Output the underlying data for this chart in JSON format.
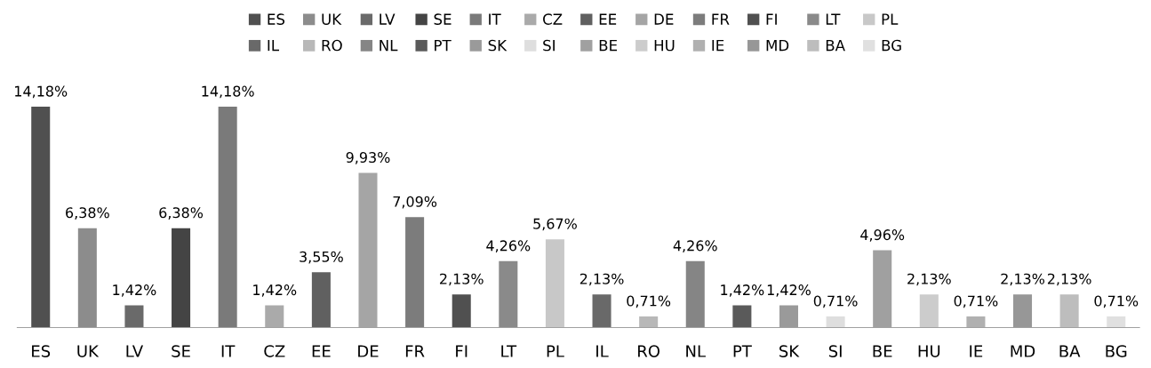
{
  "chart_data": {
    "type": "bar",
    "categories": [
      "ES",
      "UK",
      "LV",
      "SE",
      "IT",
      "CZ",
      "EE",
      "DE",
      "FR",
      "FI",
      "LT",
      "PL",
      "IL",
      "RO",
      "NL",
      "PT",
      "SK",
      "SI",
      "BE",
      "HU",
      "IE",
      "MD",
      "BA",
      "BG"
    ],
    "legend": "top",
    "series": [
      {
        "name": "ES",
        "color": "#505050",
        "values": [
          14.18,
          null,
          null,
          null,
          null,
          null,
          null,
          null,
          null,
          null,
          null,
          null,
          null,
          null,
          null,
          null,
          null,
          null,
          null,
          null,
          null,
          null,
          null,
          null
        ],
        "value_labels": [
          "14,18%",
          null,
          null,
          null,
          null,
          null,
          null,
          null,
          null,
          null,
          null,
          null,
          null,
          null,
          null,
          null,
          null,
          null,
          null,
          null,
          null,
          null,
          null,
          null
        ]
      },
      {
        "name": "UK",
        "color": "#8c8c8c",
        "values": [
          null,
          6.38,
          null,
          null,
          null,
          null,
          null,
          null,
          null,
          null,
          null,
          null,
          null,
          null,
          null,
          null,
          null,
          null,
          null,
          null,
          null,
          null,
          null,
          null
        ],
        "value_labels": [
          null,
          "6,38%",
          null,
          null,
          null,
          null,
          null,
          null,
          null,
          null,
          null,
          null,
          null,
          null,
          null,
          null,
          null,
          null,
          null,
          null,
          null,
          null,
          null,
          null
        ]
      },
      {
        "name": "LV",
        "color": "#6a6a6a",
        "values": [
          null,
          null,
          1.42,
          null,
          null,
          null,
          null,
          null,
          null,
          null,
          null,
          null,
          null,
          null,
          null,
          null,
          null,
          null,
          null,
          null,
          null,
          null,
          null,
          null
        ],
        "value_labels": [
          null,
          null,
          "1,42%",
          null,
          null,
          null,
          null,
          null,
          null,
          null,
          null,
          null,
          null,
          null,
          null,
          null,
          null,
          null,
          null,
          null,
          null,
          null,
          null,
          null
        ]
      },
      {
        "name": "SE",
        "color": "#444444",
        "values": [
          null,
          null,
          null,
          6.38,
          null,
          null,
          null,
          null,
          null,
          null,
          null,
          null,
          null,
          null,
          null,
          null,
          null,
          null,
          null,
          null,
          null,
          null,
          null,
          null
        ],
        "value_labels": [
          null,
          null,
          null,
          "6,38%",
          null,
          null,
          null,
          null,
          null,
          null,
          null,
          null,
          null,
          null,
          null,
          null,
          null,
          null,
          null,
          null,
          null,
          null,
          null,
          null
        ]
      },
      {
        "name": "IT",
        "color": "#7a7a7a",
        "values": [
          null,
          null,
          null,
          null,
          14.18,
          null,
          null,
          null,
          null,
          null,
          null,
          null,
          null,
          null,
          null,
          null,
          null,
          null,
          null,
          null,
          null,
          null,
          null,
          null
        ],
        "value_labels": [
          null,
          null,
          null,
          null,
          "14,18%",
          null,
          null,
          null,
          null,
          null,
          null,
          null,
          null,
          null,
          null,
          null,
          null,
          null,
          null,
          null,
          null,
          null,
          null,
          null
        ]
      },
      {
        "name": "CZ",
        "color": "#aaaaaa",
        "values": [
          null,
          null,
          null,
          null,
          null,
          1.42,
          null,
          null,
          null,
          null,
          null,
          null,
          null,
          null,
          null,
          null,
          null,
          null,
          null,
          null,
          null,
          null,
          null,
          null
        ],
        "value_labels": [
          null,
          null,
          null,
          null,
          null,
          "1,42%",
          null,
          null,
          null,
          null,
          null,
          null,
          null,
          null,
          null,
          null,
          null,
          null,
          null,
          null,
          null,
          null,
          null,
          null
        ]
      },
      {
        "name": "EE",
        "color": "#606060",
        "values": [
          null,
          null,
          null,
          null,
          null,
          null,
          3.55,
          null,
          null,
          null,
          null,
          null,
          null,
          null,
          null,
          null,
          null,
          null,
          null,
          null,
          null,
          null,
          null,
          null
        ],
        "value_labels": [
          null,
          null,
          null,
          null,
          null,
          null,
          "3,55%",
          null,
          null,
          null,
          null,
          null,
          null,
          null,
          null,
          null,
          null,
          null,
          null,
          null,
          null,
          null,
          null,
          null
        ]
      },
      {
        "name": "DE",
        "color": "#a5a5a5",
        "values": [
          null,
          null,
          null,
          null,
          null,
          null,
          null,
          9.93,
          null,
          null,
          null,
          null,
          null,
          null,
          null,
          null,
          null,
          null,
          null,
          null,
          null,
          null,
          null,
          null
        ],
        "value_labels": [
          null,
          null,
          null,
          null,
          null,
          null,
          null,
          "9,93%",
          null,
          null,
          null,
          null,
          null,
          null,
          null,
          null,
          null,
          null,
          null,
          null,
          null,
          null,
          null,
          null
        ]
      },
      {
        "name": "FR",
        "color": "#7c7c7c",
        "values": [
          null,
          null,
          null,
          null,
          null,
          null,
          null,
          null,
          7.09,
          null,
          null,
          null,
          null,
          null,
          null,
          null,
          null,
          null,
          null,
          null,
          null,
          null,
          null,
          null
        ],
        "value_labels": [
          null,
          null,
          null,
          null,
          null,
          null,
          null,
          null,
          "7,09%",
          null,
          null,
          null,
          null,
          null,
          null,
          null,
          null,
          null,
          null,
          null,
          null,
          null,
          null,
          null
        ]
      },
      {
        "name": "FI",
        "color": "#505050",
        "values": [
          null,
          null,
          null,
          null,
          null,
          null,
          null,
          null,
          null,
          2.13,
          null,
          null,
          null,
          null,
          null,
          null,
          null,
          null,
          null,
          null,
          null,
          null,
          null,
          null
        ],
        "value_labels": [
          null,
          null,
          null,
          null,
          null,
          null,
          null,
          null,
          null,
          "2,13%",
          null,
          null,
          null,
          null,
          null,
          null,
          null,
          null,
          null,
          null,
          null,
          null,
          null,
          null
        ]
      },
      {
        "name": "LT",
        "color": "#8a8a8a",
        "values": [
          null,
          null,
          null,
          null,
          null,
          null,
          null,
          null,
          null,
          null,
          4.26,
          null,
          null,
          null,
          null,
          null,
          null,
          null,
          null,
          null,
          null,
          null,
          null,
          null
        ],
        "value_labels": [
          null,
          null,
          null,
          null,
          null,
          null,
          null,
          null,
          null,
          null,
          "4,26%",
          null,
          null,
          null,
          null,
          null,
          null,
          null,
          null,
          null,
          null,
          null,
          null,
          null
        ]
      },
      {
        "name": "PL",
        "color": "#c8c8c8",
        "values": [
          null,
          null,
          null,
          null,
          null,
          null,
          null,
          null,
          null,
          null,
          null,
          5.67,
          null,
          null,
          null,
          null,
          null,
          null,
          null,
          null,
          null,
          null,
          null,
          null
        ],
        "value_labels": [
          null,
          null,
          null,
          null,
          null,
          null,
          null,
          null,
          null,
          null,
          null,
          "5,67%",
          null,
          null,
          null,
          null,
          null,
          null,
          null,
          null,
          null,
          null,
          null,
          null
        ]
      },
      {
        "name": "IL",
        "color": "#696969",
        "values": [
          null,
          null,
          null,
          null,
          null,
          null,
          null,
          null,
          null,
          null,
          null,
          null,
          2.13,
          null,
          null,
          null,
          null,
          null,
          null,
          null,
          null,
          null,
          null,
          null
        ],
        "value_labels": [
          null,
          null,
          null,
          null,
          null,
          null,
          null,
          null,
          null,
          null,
          null,
          null,
          "2,13%",
          null,
          null,
          null,
          null,
          null,
          null,
          null,
          null,
          null,
          null,
          null
        ]
      },
      {
        "name": "RO",
        "color": "#b8b8b8",
        "values": [
          null,
          null,
          null,
          null,
          null,
          null,
          null,
          null,
          null,
          null,
          null,
          null,
          null,
          0.71,
          null,
          null,
          null,
          null,
          null,
          null,
          null,
          null,
          null,
          null
        ],
        "value_labels": [
          null,
          null,
          null,
          null,
          null,
          null,
          null,
          null,
          null,
          null,
          null,
          null,
          null,
          "0,71%",
          null,
          null,
          null,
          null,
          null,
          null,
          null,
          null,
          null,
          null
        ]
      },
      {
        "name": "NL",
        "color": "#858585",
        "values": [
          null,
          null,
          null,
          null,
          null,
          null,
          null,
          null,
          null,
          null,
          null,
          null,
          null,
          null,
          4.26,
          null,
          null,
          null,
          null,
          null,
          null,
          null,
          null,
          null
        ],
        "value_labels": [
          null,
          null,
          null,
          null,
          null,
          null,
          null,
          null,
          null,
          null,
          null,
          null,
          null,
          null,
          "4,26%",
          null,
          null,
          null,
          null,
          null,
          null,
          null,
          null,
          null
        ]
      },
      {
        "name": "PT",
        "color": "#5a5a5a",
        "values": [
          null,
          null,
          null,
          null,
          null,
          null,
          null,
          null,
          null,
          null,
          null,
          null,
          null,
          null,
          null,
          1.42,
          null,
          null,
          null,
          null,
          null,
          null,
          null,
          null
        ],
        "value_labels": [
          null,
          null,
          null,
          null,
          null,
          null,
          null,
          null,
          null,
          null,
          null,
          null,
          null,
          null,
          null,
          "1,42%",
          null,
          null,
          null,
          null,
          null,
          null,
          null,
          null
        ]
      },
      {
        "name": "SK",
        "color": "#9a9a9a",
        "values": [
          null,
          null,
          null,
          null,
          null,
          null,
          null,
          null,
          null,
          null,
          null,
          null,
          null,
          null,
          null,
          null,
          1.42,
          null,
          null,
          null,
          null,
          null,
          null,
          null
        ],
        "value_labels": [
          null,
          null,
          null,
          null,
          null,
          null,
          null,
          null,
          null,
          null,
          null,
          null,
          null,
          null,
          null,
          null,
          "1,42%",
          null,
          null,
          null,
          null,
          null,
          null,
          null
        ]
      },
      {
        "name": "SI",
        "color": "#dedede",
        "values": [
          null,
          null,
          null,
          null,
          null,
          null,
          null,
          null,
          null,
          null,
          null,
          null,
          null,
          null,
          null,
          null,
          null,
          0.71,
          null,
          null,
          null,
          null,
          null,
          null
        ],
        "value_labels": [
          null,
          null,
          null,
          null,
          null,
          null,
          null,
          null,
          null,
          null,
          null,
          null,
          null,
          null,
          null,
          null,
          null,
          "0,71%",
          null,
          null,
          null,
          null,
          null,
          null
        ]
      },
      {
        "name": "BE",
        "color": "#a0a0a0",
        "values": [
          null,
          null,
          null,
          null,
          null,
          null,
          null,
          null,
          null,
          null,
          null,
          null,
          null,
          null,
          null,
          null,
          null,
          null,
          4.96,
          null,
          null,
          null,
          null,
          null
        ],
        "value_labels": [
          null,
          null,
          null,
          null,
          null,
          null,
          null,
          null,
          null,
          null,
          null,
          null,
          null,
          null,
          null,
          null,
          null,
          null,
          "4,96%",
          null,
          null,
          null,
          null,
          null
        ]
      },
      {
        "name": "HU",
        "color": "#cccccc",
        "values": [
          null,
          null,
          null,
          null,
          null,
          null,
          null,
          null,
          null,
          null,
          null,
          null,
          null,
          null,
          null,
          null,
          null,
          null,
          null,
          2.13,
          null,
          null,
          null,
          null
        ],
        "value_labels": [
          null,
          null,
          null,
          null,
          null,
          null,
          null,
          null,
          null,
          null,
          null,
          null,
          null,
          null,
          null,
          null,
          null,
          null,
          null,
          "2,13%",
          null,
          null,
          null,
          null
        ]
      },
      {
        "name": "IE",
        "color": "#b0b0b0",
        "values": [
          null,
          null,
          null,
          null,
          null,
          null,
          null,
          null,
          null,
          null,
          null,
          null,
          null,
          null,
          null,
          null,
          null,
          null,
          null,
          null,
          0.71,
          null,
          null,
          null
        ],
        "value_labels": [
          null,
          null,
          null,
          null,
          null,
          null,
          null,
          null,
          null,
          null,
          null,
          null,
          null,
          null,
          null,
          null,
          null,
          null,
          null,
          null,
          "0,71%",
          null,
          null,
          null
        ]
      },
      {
        "name": "MD",
        "color": "#979797",
        "values": [
          null,
          null,
          null,
          null,
          null,
          null,
          null,
          null,
          null,
          null,
          null,
          null,
          null,
          null,
          null,
          null,
          null,
          null,
          null,
          null,
          null,
          2.13,
          null,
          null
        ],
        "value_labels": [
          null,
          null,
          null,
          null,
          null,
          null,
          null,
          null,
          null,
          null,
          null,
          null,
          null,
          null,
          null,
          null,
          null,
          null,
          null,
          null,
          null,
          "2,13%",
          null,
          null
        ]
      },
      {
        "name": "BA",
        "color": "#bdbdbd",
        "values": [
          null,
          null,
          null,
          null,
          null,
          null,
          null,
          null,
          null,
          null,
          null,
          null,
          null,
          null,
          null,
          null,
          null,
          null,
          null,
          null,
          null,
          null,
          2.13,
          null
        ],
        "value_labels": [
          null,
          null,
          null,
          null,
          null,
          null,
          null,
          null,
          null,
          null,
          null,
          null,
          null,
          null,
          null,
          null,
          null,
          null,
          null,
          null,
          null,
          null,
          "2,13%",
          null
        ]
      },
      {
        "name": "BG",
        "color": "#e0e0e0",
        "values": [
          null,
          null,
          null,
          null,
          null,
          null,
          null,
          null,
          null,
          null,
          null,
          null,
          null,
          null,
          null,
          null,
          null,
          null,
          null,
          null,
          null,
          null,
          null,
          0.71
        ],
        "value_labels": [
          null,
          null,
          null,
          null,
          null,
          null,
          null,
          null,
          null,
          null,
          null,
          null,
          null,
          null,
          null,
          null,
          null,
          null,
          null,
          null,
          null,
          null,
          null,
          "0,71%"
        ]
      }
    ]
  }
}
